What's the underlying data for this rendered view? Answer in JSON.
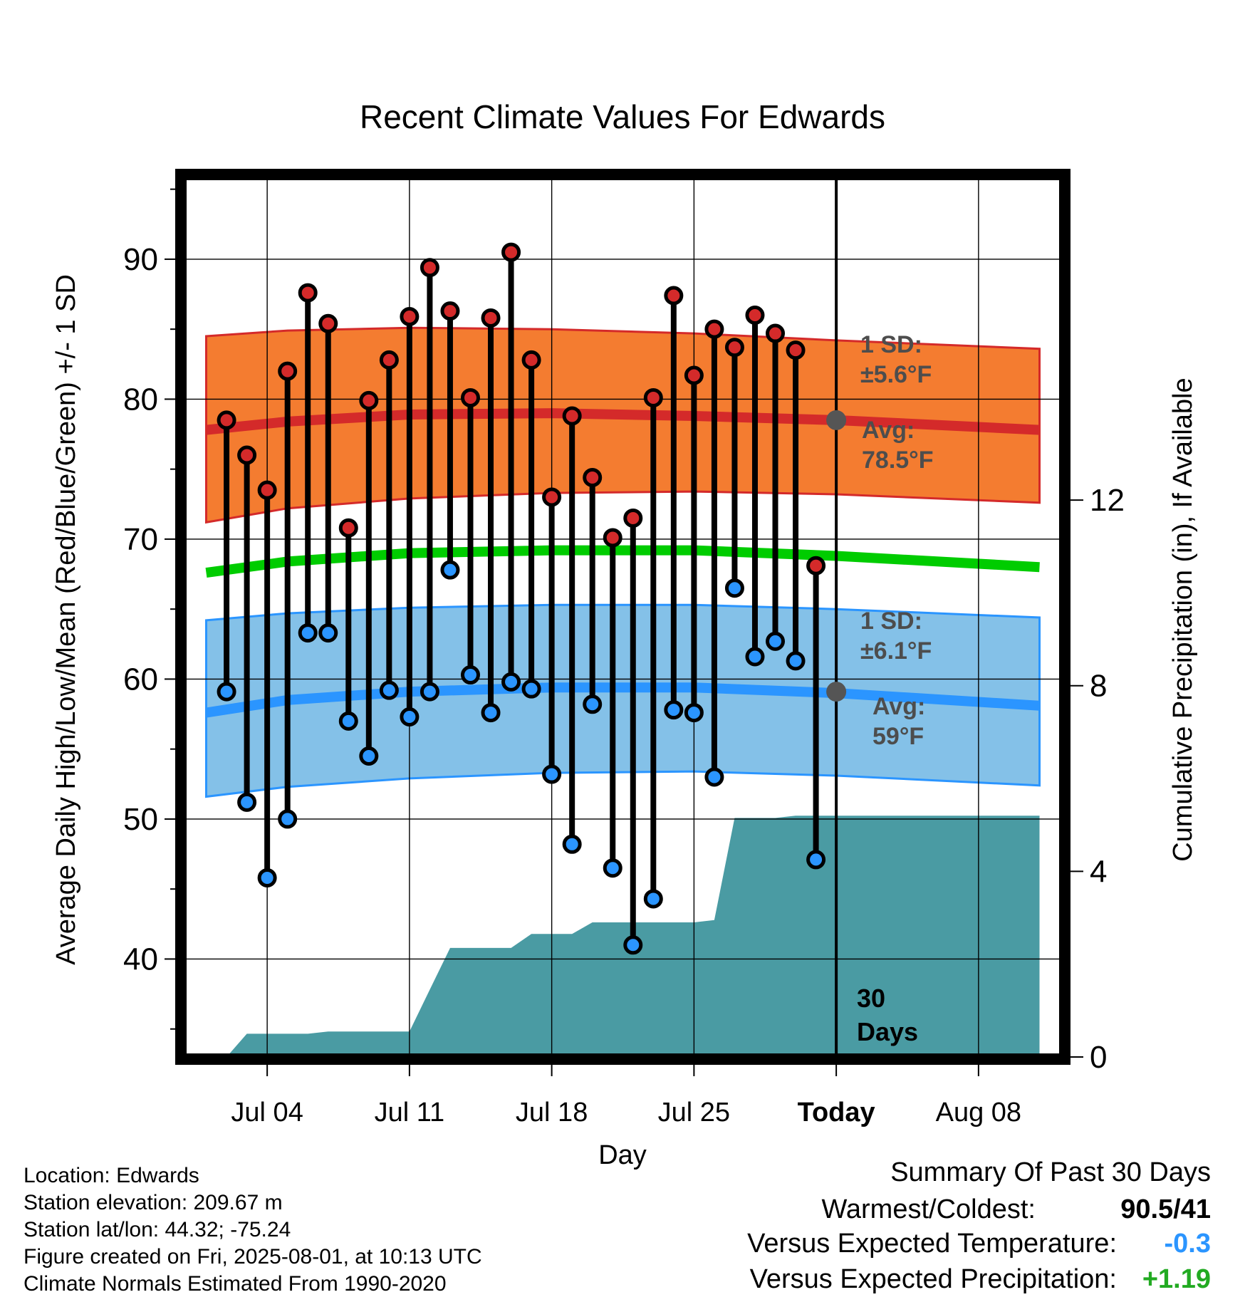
{
  "chart_data": {
    "type": "line",
    "title": "Recent Climate Values For Edwards",
    "xlabel": "Day",
    "ylabel": "Average Daily High/Low/Mean (Red/Blue/Green) +/- 1 SD",
    "y2label": "Cumulative Precipitation (in), If Available",
    "ylim": [
      33,
      96
    ],
    "y2lim": [
      0,
      19
    ],
    "xlim": [
      "2025-06-30",
      "2025-08-12"
    ],
    "x_ticks": [
      "Jul 04",
      "Jul 11",
      "Jul 18",
      "Jul 25",
      "Today",
      "Aug 08"
    ],
    "y_ticks": [
      40,
      50,
      60,
      70,
      80,
      90
    ],
    "y2_ticks": [
      0,
      4,
      8,
      12
    ],
    "grid": true,
    "today": "2025-08-01",
    "days_annotation": [
      "30",
      "Days"
    ],
    "colors": {
      "high": "#d42a2a",
      "low": "#2b95ff",
      "mean": "#00cc00",
      "high_band": "#f47c30",
      "low_band": "#84c1e8",
      "precip": "#4a9ba3"
    },
    "normal_high": {
      "avg_label": [
        "Avg:",
        "78.5°F"
      ],
      "sd_label": [
        "1 SD:",
        "±5.6°F"
      ],
      "dates": [
        "2025-07-01",
        "2025-07-05",
        "2025-07-11",
        "2025-07-18",
        "2025-07-25",
        "2025-08-01",
        "2025-08-11"
      ],
      "avg": [
        77.8,
        78.4,
        78.9,
        79.0,
        78.8,
        78.5,
        77.8
      ],
      "upper": [
        84.5,
        84.9,
        85.1,
        85.0,
        84.7,
        84.2,
        83.6
      ],
      "lower": [
        71.2,
        72.2,
        72.9,
        73.3,
        73.4,
        73.2,
        72.6
      ]
    },
    "normal_low": {
      "avg_label": [
        "Avg:",
        "59°F"
      ],
      "sd_label": [
        "1 SD:",
        "±6.1°F"
      ],
      "dates": [
        "2025-07-01",
        "2025-07-05",
        "2025-07-11",
        "2025-07-18",
        "2025-07-25",
        "2025-08-01",
        "2025-08-11"
      ],
      "avg": [
        57.6,
        58.5,
        59.1,
        59.4,
        59.4,
        59.0,
        58.1
      ],
      "upper": [
        64.2,
        64.7,
        65.1,
        65.3,
        65.3,
        65.0,
        64.4
      ],
      "lower": [
        51.6,
        52.3,
        52.9,
        53.3,
        53.4,
        53.1,
        52.4
      ]
    },
    "normal_mean": {
      "dates": [
        "2025-07-01",
        "2025-07-05",
        "2025-07-11",
        "2025-07-18",
        "2025-07-25",
        "2025-08-01",
        "2025-08-11"
      ],
      "values": [
        67.6,
        68.4,
        69.0,
        69.2,
        69.2,
        68.8,
        68.0
      ]
    },
    "series": [
      {
        "name": "High",
        "dates": [
          "2025-07-02",
          "2025-07-03",
          "2025-07-04",
          "2025-07-05",
          "2025-07-06",
          "2025-07-07",
          "2025-07-08",
          "2025-07-09",
          "2025-07-10",
          "2025-07-11",
          "2025-07-12",
          "2025-07-13",
          "2025-07-14",
          "2025-07-15",
          "2025-07-16",
          "2025-07-17",
          "2025-07-18",
          "2025-07-19",
          "2025-07-20",
          "2025-07-21",
          "2025-07-22",
          "2025-07-23",
          "2025-07-24",
          "2025-07-25",
          "2025-07-26",
          "2025-07-27",
          "2025-07-28",
          "2025-07-29",
          "2025-07-30",
          "2025-07-31"
        ],
        "values": [
          78.5,
          76.0,
          73.5,
          82.0,
          87.6,
          85.4,
          70.8,
          79.9,
          82.8,
          85.9,
          89.4,
          86.3,
          80.1,
          85.8,
          90.5,
          82.8,
          73.0,
          78.8,
          74.4,
          70.1,
          71.5,
          80.1,
          87.4,
          81.7,
          85.0,
          83.7,
          86.0,
          84.7,
          83.5,
          68.1
        ]
      },
      {
        "name": "Low",
        "dates": [
          "2025-07-02",
          "2025-07-03",
          "2025-07-04",
          "2025-07-05",
          "2025-07-06",
          "2025-07-07",
          "2025-07-08",
          "2025-07-09",
          "2025-07-10",
          "2025-07-11",
          "2025-07-12",
          "2025-07-13",
          "2025-07-14",
          "2025-07-15",
          "2025-07-16",
          "2025-07-17",
          "2025-07-18",
          "2025-07-19",
          "2025-07-20",
          "2025-07-21",
          "2025-07-22",
          "2025-07-23",
          "2025-07-24",
          "2025-07-25",
          "2025-07-26",
          "2025-07-27",
          "2025-07-28",
          "2025-07-29",
          "2025-07-30",
          "2025-07-31"
        ],
        "values": [
          59.1,
          51.2,
          45.8,
          50.0,
          63.3,
          63.3,
          57.0,
          54.5,
          59.2,
          57.3,
          59.1,
          67.8,
          60.3,
          57.6,
          59.8,
          59.3,
          53.2,
          48.2,
          58.2,
          46.5,
          41.0,
          44.3,
          57.8,
          57.6,
          53.0,
          66.5,
          61.6,
          62.7,
          61.3,
          47.1
        ]
      }
    ],
    "precipitation": {
      "dates": [
        "2025-07-01",
        "2025-07-02",
        "2025-07-03",
        "2025-07-06",
        "2025-07-07",
        "2025-07-11",
        "2025-07-12",
        "2025-07-13",
        "2025-07-16",
        "2025-07-17",
        "2025-07-19",
        "2025-07-20",
        "2025-07-25",
        "2025-07-26",
        "2025-07-27",
        "2025-07-29",
        "2025-07-30",
        "2025-07-31",
        "2025-08-01",
        "2025-08-11"
      ],
      "values": [
        0,
        0,
        0.5,
        0.5,
        0.55,
        0.55,
        1.45,
        2.35,
        2.35,
        2.65,
        2.65,
        2.9,
        2.9,
        2.95,
        5.15,
        5.15,
        5.2,
        5.2,
        5.2,
        5.2
      ]
    }
  },
  "info": {
    "location": "Location: Edwards",
    "elevation": "Station elevation: 209.67 m",
    "latlon": "Station lat/lon: 44.32; -75.24",
    "created": "Figure created on Fri, 2025-08-01, at 10:13 UTC",
    "normals": "Climate Normals Estimated From 1990-2020"
  },
  "summary": {
    "title": "Summary Of Past 30 Days",
    "warmest_label": "Warmest/Coldest:",
    "warmest_value": "90.5/41",
    "temp_label": "Versus Expected Temperature:",
    "temp_value": "-0.3",
    "temp_color": "#2b95ff",
    "precip_label": "Versus Expected Precipitation:",
    "precip_value": "+1.19",
    "precip_color": "#22aa22"
  }
}
